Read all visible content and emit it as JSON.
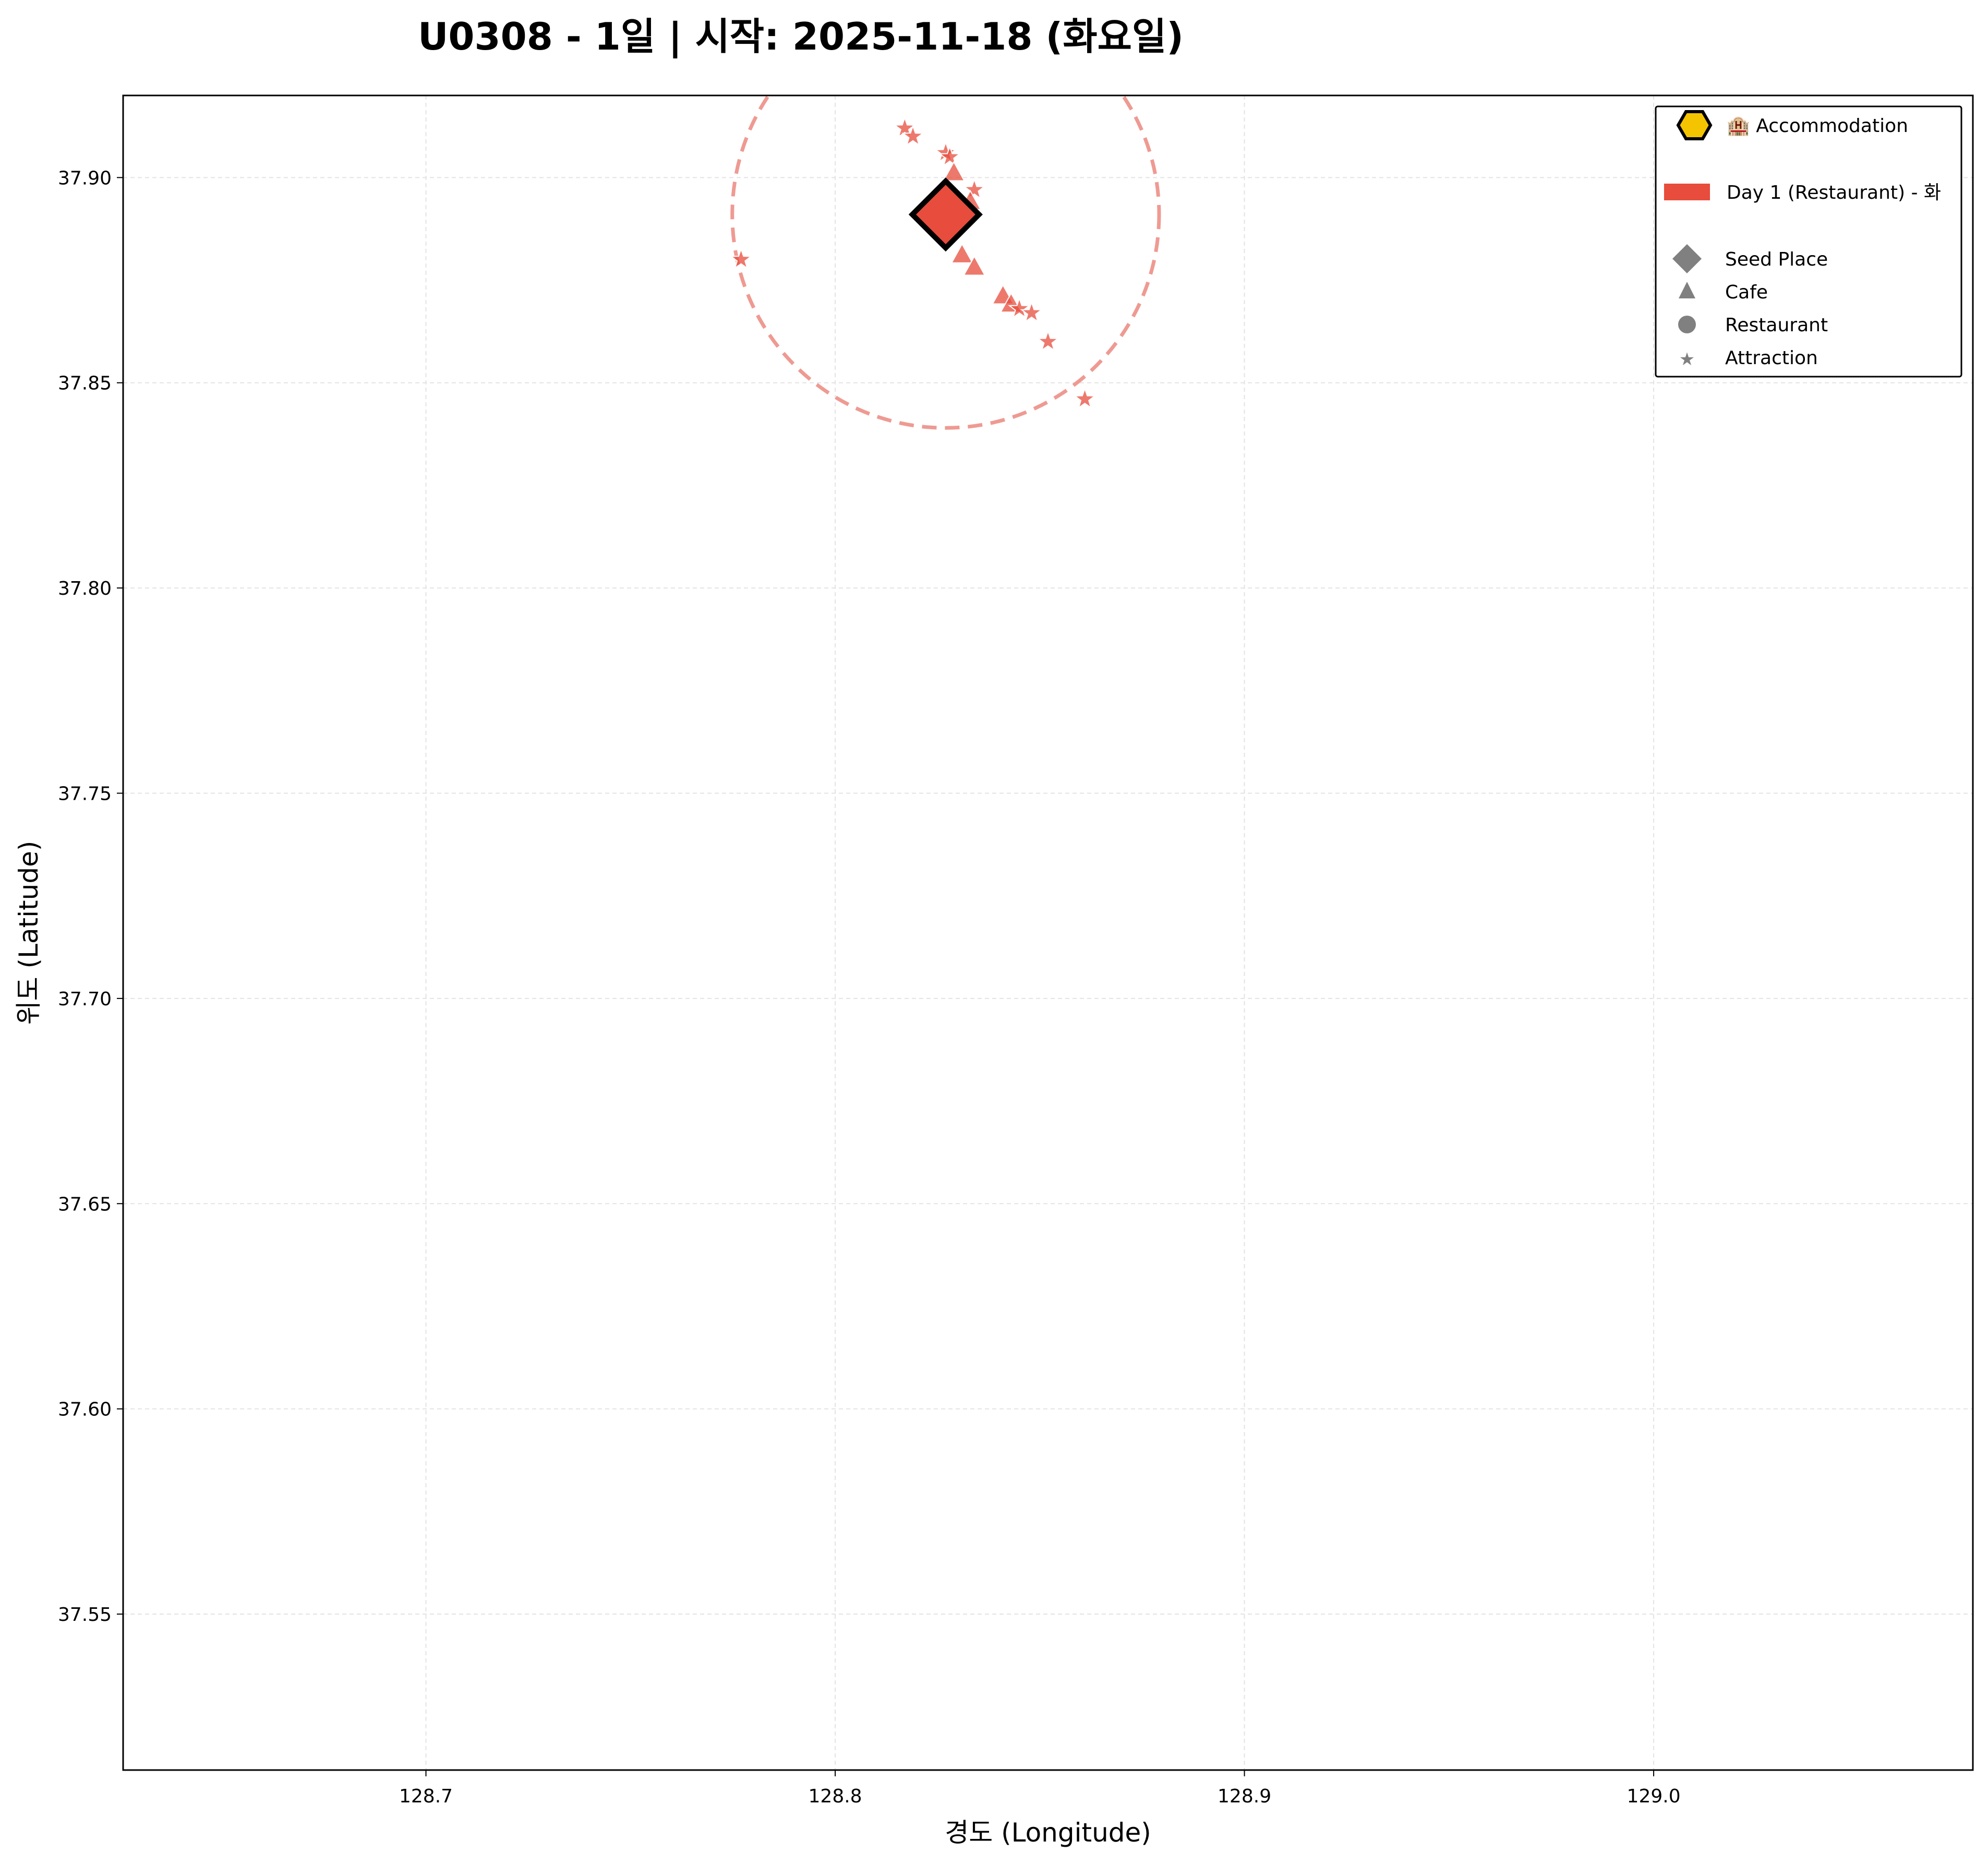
{
  "chart_data": {
    "type": "scatter",
    "title": "U0308 - 1일 | 시작: 2025-11-18 (화요일)",
    "xlabel": "경도 (Longitude)",
    "ylabel": "위도 (Latitude)",
    "xlim": [
      128.626,
      129.078
    ],
    "ylim": [
      37.512,
      37.92
    ],
    "xticks": [
      "128.7",
      "128.8",
      "128.9",
      "129.0"
    ],
    "yticks": [
      "37.55",
      "37.60",
      "37.65",
      "37.70",
      "37.75",
      "37.80",
      "37.85",
      "37.90"
    ],
    "grid": true,
    "legend_position": "top-right",
    "colors": {
      "day1": "#e74c3c",
      "accommodation": "#f5c400",
      "legend_marker": "#808080"
    },
    "legend": {
      "accommodation": "🏨 Accommodation",
      "day": "Day 1 (Restaurant) - 화",
      "seed": "Seed Place",
      "cafe": "Cafe",
      "restaurant": "Restaurant",
      "attraction": "Attraction"
    },
    "seed_place": {
      "x": 128.827,
      "y": 37.891
    },
    "radius_circle": {
      "center": [
        128.827,
        37.891
      ],
      "radius_lat": 0.052
    },
    "series": [
      {
        "name": "Day 1 (Restaurant) - 화",
        "points": [
          {
            "x": 128.817,
            "y": 37.912,
            "kind": "attraction"
          },
          {
            "x": 128.819,
            "y": 37.91,
            "kind": "attraction"
          },
          {
            "x": 128.827,
            "y": 37.906,
            "kind": "attraction"
          },
          {
            "x": 128.828,
            "y": 37.905,
            "kind": "attraction"
          },
          {
            "x": 128.829,
            "y": 37.901,
            "kind": "cafe"
          },
          {
            "x": 128.834,
            "y": 37.897,
            "kind": "attraction"
          },
          {
            "x": 128.833,
            "y": 37.894,
            "kind": "cafe"
          },
          {
            "x": 128.777,
            "y": 37.88,
            "kind": "attraction"
          },
          {
            "x": 128.831,
            "y": 37.881,
            "kind": "cafe"
          },
          {
            "x": 128.834,
            "y": 37.878,
            "kind": "cafe"
          },
          {
            "x": 128.841,
            "y": 37.871,
            "kind": "cafe"
          },
          {
            "x": 128.843,
            "y": 37.869,
            "kind": "cafe"
          },
          {
            "x": 128.845,
            "y": 37.868,
            "kind": "attraction"
          },
          {
            "x": 128.848,
            "y": 37.867,
            "kind": "attraction"
          },
          {
            "x": 128.852,
            "y": 37.86,
            "kind": "attraction"
          },
          {
            "x": 128.861,
            "y": 37.846,
            "kind": "attraction"
          }
        ]
      }
    ]
  }
}
